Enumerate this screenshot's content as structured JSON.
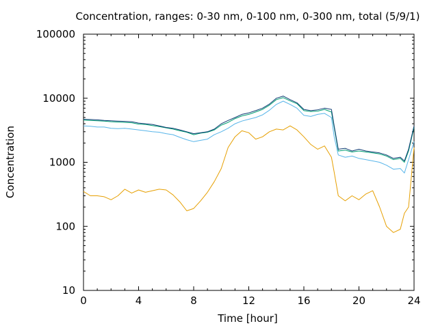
{
  "chart_data": {
    "type": "line",
    "title": "Concentration, ranges: 0-30 nm, 0-100 nm, 0-300 nm, total (5/9/1)",
    "xlabel": "Time [hour]",
    "ylabel": "Concentration",
    "xlim": [
      0,
      24
    ],
    "ylim": [
      10,
      100000
    ],
    "yscale": "log",
    "xticks": [
      0,
      4,
      8,
      12,
      16,
      20,
      24
    ],
    "xtick_labels": [
      "0",
      "4",
      "8",
      "12",
      "16",
      "20",
      "24"
    ],
    "yticks": [
      10,
      100,
      1000,
      10000,
      100000
    ],
    "ytick_labels": [
      "10",
      "100",
      "1000",
      "10000",
      "100000"
    ],
    "grid": false,
    "legend": "none",
    "x": [
      0,
      0.5,
      1,
      1.5,
      2,
      2.5,
      3,
      3.5,
      4,
      4.5,
      5,
      5.5,
      6,
      6.5,
      7,
      7.5,
      8,
      8.5,
      9,
      9.5,
      10,
      10.5,
      11,
      11.5,
      12,
      12.5,
      13,
      13.5,
      14,
      14.5,
      15,
      15.5,
      16,
      16.5,
      17,
      17.5,
      18,
      18.2,
      18.5,
      19,
      19.5,
      20,
      20.5,
      21,
      21.5,
      22,
      22.5,
      23,
      23.3,
      23.6,
      24
    ],
    "series": [
      {
        "values": [
          350,
          300,
          300,
          290,
          260,
          300,
          380,
          330,
          370,
          340,
          360,
          380,
          370,
          310,
          240,
          175,
          190,
          250,
          340,
          500,
          800,
          1700,
          2500,
          3100,
          2900,
          2300,
          2500,
          3000,
          3300,
          3200,
          3700,
          3200,
          2500,
          1900,
          1600,
          1800,
          1200,
          700,
          300,
          250,
          300,
          260,
          320,
          360,
          200,
          100,
          80,
          90,
          160,
          200,
          1700
        ],
        "color": "#e69f00"
      },
      {
        "values": [
          3700,
          3650,
          3550,
          3550,
          3400,
          3350,
          3400,
          3300,
          3200,
          3100,
          3000,
          2950,
          2800,
          2700,
          2450,
          2250,
          2100,
          2200,
          2300,
          2700,
          3000,
          3400,
          4000,
          4400,
          4700,
          5000,
          5500,
          6500,
          8000,
          9000,
          8000,
          7000,
          5400,
          5200,
          5600,
          5800,
          5000,
          2500,
          1300,
          1200,
          1250,
          1150,
          1100,
          1050,
          1000,
          900,
          780,
          800,
          680,
          1100,
          2100
        ],
        "color": "#56b4e9"
      },
      {
        "values": [
          4550,
          4500,
          4450,
          4400,
          4300,
          4250,
          4200,
          4150,
          3950,
          3900,
          3750,
          3600,
          3450,
          3300,
          3100,
          2950,
          2700,
          2850,
          2950,
          3200,
          3800,
          4200,
          4800,
          5300,
          5600,
          6100,
          6700,
          7800,
          9500,
          10200,
          9100,
          8200,
          6400,
          6200,
          6300,
          6700,
          6100,
          3500,
          1500,
          1550,
          1450,
          1500,
          1450,
          1400,
          1350,
          1250,
          1100,
          1150,
          1000,
          1500,
          3500
        ],
        "color": "#009e73"
      },
      {
        "values": [
          4700,
          4650,
          4600,
          4500,
          4450,
          4400,
          4350,
          4300,
          4100,
          4000,
          3900,
          3700,
          3500,
          3400,
          3200,
          3000,
          2800,
          2900,
          3000,
          3300,
          4000,
          4500,
          5000,
          5600,
          5900,
          6400,
          7000,
          8100,
          10000,
          10800,
          9500,
          8500,
          6700,
          6400,
          6600,
          7000,
          6700,
          3700,
          1600,
          1650,
          1500,
          1600,
          1500,
          1450,
          1400,
          1300,
          1150,
          1200,
          1050,
          1600,
          3700
        ],
        "color": "#0d3b73"
      }
    ]
  }
}
